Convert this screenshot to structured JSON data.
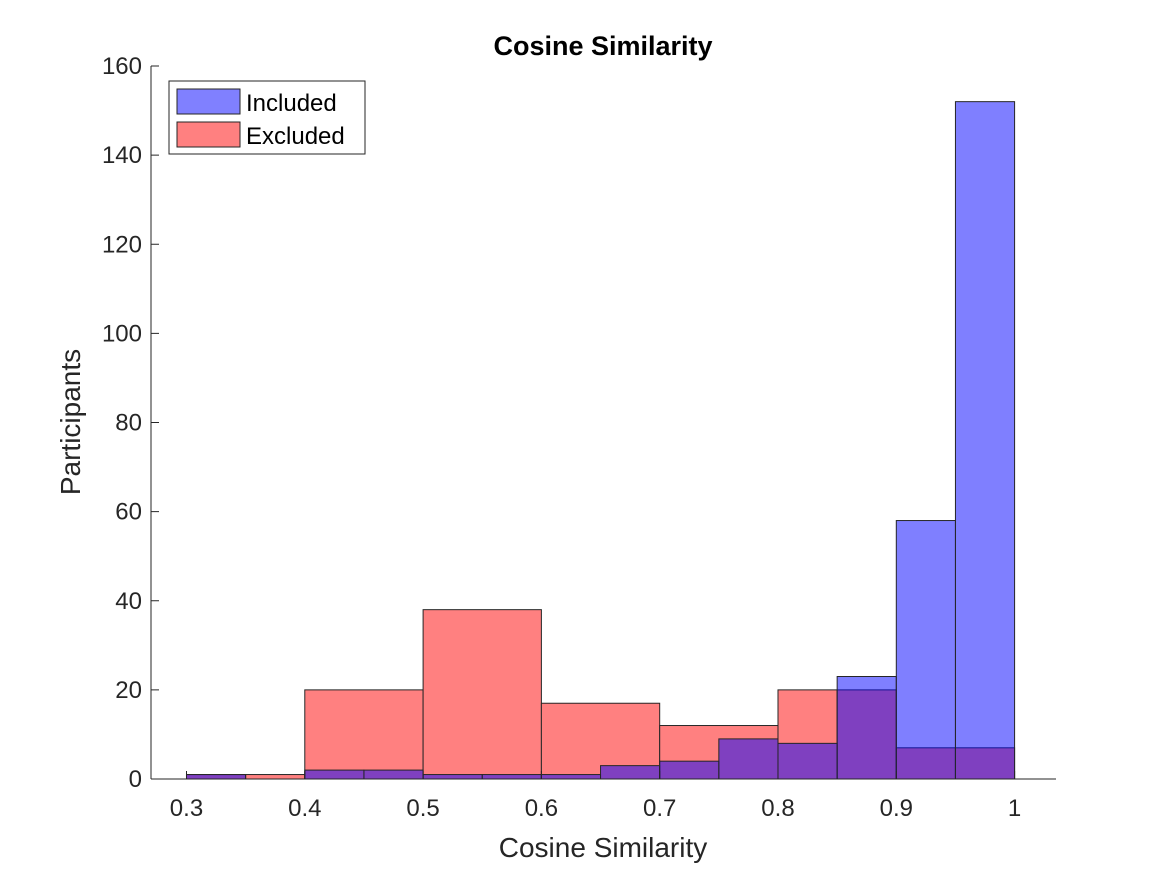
{
  "chart_data": {
    "type": "bar",
    "title": "Cosine Similarity",
    "xlabel": "Cosine Similarity",
    "ylabel": "Participants",
    "xlim": [
      0.27,
      1.035
    ],
    "ylim": [
      0,
      160
    ],
    "xticks": [
      "0.3",
      "0.4",
      "0.5",
      "0.6",
      "0.7",
      "0.8",
      "0.9",
      "1"
    ],
    "yticks": [
      "0",
      "20",
      "40",
      "60",
      "80",
      "100",
      "120",
      "140",
      "160"
    ],
    "grid": false,
    "legend_position": "top-left",
    "series": [
      {
        "name": "Included",
        "color": "#8080ff",
        "bins": [
          {
            "x0": 0.3,
            "x1": 0.35,
            "value": 1
          },
          {
            "x0": 0.4,
            "x1": 0.45,
            "value": 2
          },
          {
            "x0": 0.45,
            "x1": 0.5,
            "value": 2
          },
          {
            "x0": 0.5,
            "x1": 0.55,
            "value": 1
          },
          {
            "x0": 0.55,
            "x1": 0.6,
            "value": 1
          },
          {
            "x0": 0.6,
            "x1": 0.65,
            "value": 1
          },
          {
            "x0": 0.65,
            "x1": 0.7,
            "value": 3
          },
          {
            "x0": 0.7,
            "x1": 0.75,
            "value": 4
          },
          {
            "x0": 0.75,
            "x1": 0.8,
            "value": 9
          },
          {
            "x0": 0.8,
            "x1": 0.85,
            "value": 8
          },
          {
            "x0": 0.85,
            "x1": 0.9,
            "value": 23
          },
          {
            "x0": 0.9,
            "x1": 0.95,
            "value": 58
          },
          {
            "x0": 0.95,
            "x1": 1.0,
            "value": 152
          }
        ]
      },
      {
        "name": "Excluded",
        "color": "#ff8080",
        "bins": [
          {
            "x0": 0.3,
            "x1": 0.35,
            "value": 1
          },
          {
            "x0": 0.35,
            "x1": 0.4,
            "value": 1
          },
          {
            "x0": 0.4,
            "x1": 0.5,
            "value": 20
          },
          {
            "x0": 0.5,
            "x1": 0.6,
            "value": 38
          },
          {
            "x0": 0.6,
            "x1": 0.7,
            "value": 17
          },
          {
            "x0": 0.7,
            "x1": 0.8,
            "value": 12
          },
          {
            "x0": 0.8,
            "x1": 0.85,
            "value": 20
          },
          {
            "x0": 0.85,
            "x1": 0.9,
            "value": 20
          },
          {
            "x0": 0.9,
            "x1": 0.95,
            "value": 7
          },
          {
            "x0": 0.95,
            "x1": 1.0,
            "value": 7
          }
        ]
      }
    ],
    "overlap_color": "#c03c80"
  }
}
